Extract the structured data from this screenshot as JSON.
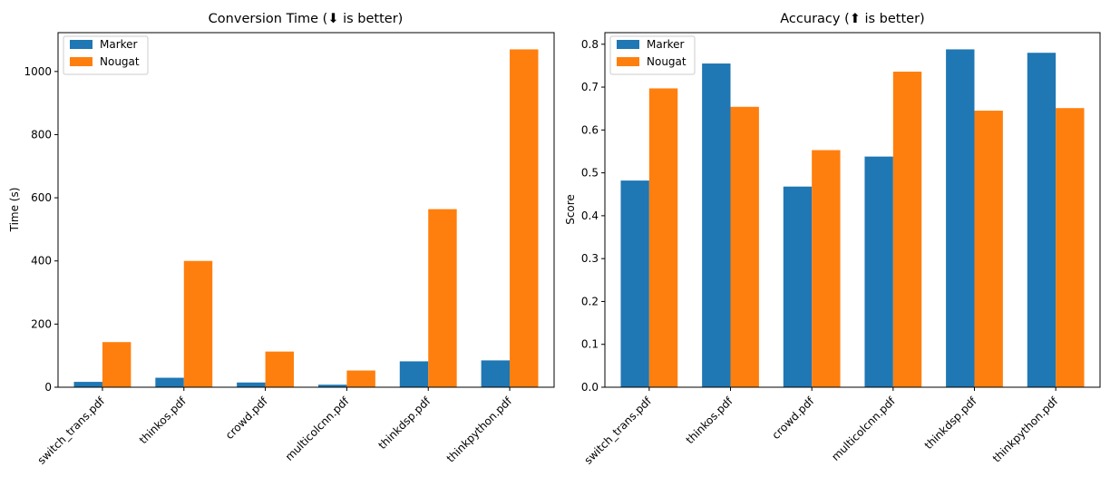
{
  "chart_data": [
    {
      "type": "bar",
      "title": "Conversion Time (⬇ is better)",
      "xlabel": "",
      "ylabel": "Time (s)",
      "categories": [
        "switch_trans.pdf",
        "thinkos.pdf",
        "crowd.pdf",
        "multicolcnn.pdf",
        "thinkdsp.pdf",
        "thinkpython.pdf"
      ],
      "series": [
        {
          "name": "Marker",
          "color": "#1f77b4",
          "values": [
            17,
            30,
            15,
            8,
            82,
            85
          ]
        },
        {
          "name": "Nougat",
          "color": "#ff7f0e",
          "values": [
            143,
            400,
            113,
            53,
            564,
            1070
          ]
        }
      ],
      "ylim": [
        0,
        1123
      ],
      "yticks": [
        "0",
        "200",
        "400",
        "600",
        "800",
        "1000"
      ],
      "ytick_values": [
        0,
        200,
        400,
        600,
        800,
        1000
      ],
      "legend": "top-left",
      "grid": false
    },
    {
      "type": "bar",
      "title": "Accuracy (⬆ is better)",
      "xlabel": "",
      "ylabel": "Score",
      "categories": [
        "switch_trans.pdf",
        "thinkos.pdf",
        "crowd.pdf",
        "multicolcnn.pdf",
        "thinkdsp.pdf",
        "thinkpython.pdf"
      ],
      "series": [
        {
          "name": "Marker",
          "color": "#1f77b4",
          "values": [
            0.482,
            0.755,
            0.468,
            0.538,
            0.788,
            0.78
          ]
        },
        {
          "name": "Nougat",
          "color": "#ff7f0e",
          "values": [
            0.697,
            0.654,
            0.553,
            0.736,
            0.645,
            0.651
          ]
        }
      ],
      "ylim": [
        0,
        0.827
      ],
      "yticks": [
        "0.0",
        "0.1",
        "0.2",
        "0.3",
        "0.4",
        "0.5",
        "0.6",
        "0.7",
        "0.8"
      ],
      "ytick_values": [
        0,
        0.1,
        0.2,
        0.3,
        0.4,
        0.5,
        0.6,
        0.7,
        0.8
      ],
      "legend": "top-left",
      "grid": false
    }
  ]
}
